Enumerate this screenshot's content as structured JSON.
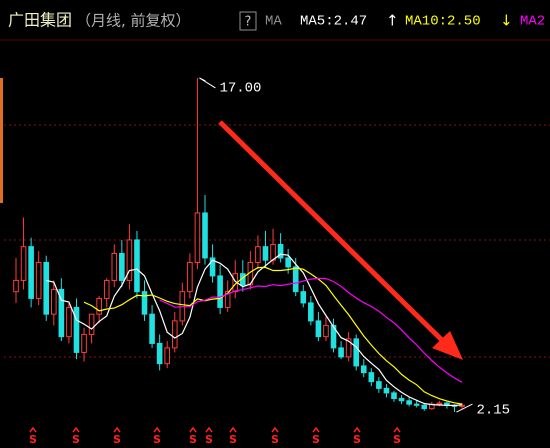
{
  "header": {
    "title": "广田集团",
    "subtitle": "（月线, 前复权）",
    "help": "?",
    "indicator": "MA"
  },
  "chart_data": {
    "type": "candlestick",
    "open": [
      7.5,
      8.0,
      9.5,
      7.2,
      8.8,
      6.5,
      7.6,
      5.5,
      6.8,
      4.8,
      5.6,
      6.5,
      7.2,
      8.0,
      9.2,
      8.0,
      9.8,
      7.5,
      6.5,
      5.2,
      4.3,
      5.0,
      6.2,
      7.5,
      8.8,
      11.0,
      9.0,
      8.2,
      6.8,
      7.5,
      8.3,
      7.8,
      8.8,
      9.5,
      8.9,
      9.6,
      9.0,
      8.6,
      7.5,
      7.0,
      6.2,
      5.5,
      6.0,
      5.0,
      4.6,
      5.4,
      4.2,
      3.9,
      3.5,
      3.2,
      3.0,
      2.75,
      2.65,
      2.5,
      2.45,
      2.3,
      2.5,
      2.55,
      2.45,
      2.4
    ],
    "high": [
      9.0,
      10.8,
      9.9,
      9.3,
      9.1,
      8.0,
      8.1,
      7.0,
      7.2,
      5.9,
      6.4,
      7.3,
      8.1,
      9.6,
      9.8,
      10.5,
      10.2,
      8.0,
      6.9,
      5.6,
      5.3,
      6.6,
      7.9,
      9.2,
      17.0,
      11.8,
      9.6,
      8.7,
      8.0,
      8.9,
      8.9,
      9.3,
      10.0,
      10.2,
      10.3,
      10.1,
      9.4,
      9.0,
      7.8,
      7.3,
      6.6,
      6.4,
      6.3,
      5.3,
      5.7,
      5.6,
      4.5,
      4.1,
      3.7,
      3.4,
      3.1,
      2.9,
      2.8,
      2.65,
      2.55,
      2.6,
      2.65,
      2.6,
      2.5,
      2.55
    ],
    "low": [
      7.0,
      7.6,
      6.8,
      6.9,
      6.2,
      6.0,
      5.3,
      5.2,
      4.5,
      4.4,
      5.2,
      6.1,
      6.8,
      7.7,
      7.7,
      7.6,
      7.2,
      6.2,
      5.0,
      4.0,
      4.1,
      4.8,
      6.0,
      7.2,
      8.5,
      8.7,
      7.9,
      6.5,
      6.6,
      7.2,
      7.5,
      7.6,
      8.5,
      8.6,
      8.7,
      8.8,
      8.3,
      7.3,
      6.8,
      6.0,
      5.3,
      5.3,
      4.8,
      4.5,
      4.4,
      4.0,
      3.7,
      3.3,
      3.0,
      2.8,
      2.6,
      2.5,
      2.4,
      2.35,
      2.2,
      2.25,
      2.4,
      2.3,
      2.15,
      2.3
    ],
    "close": [
      8.0,
      9.5,
      7.2,
      8.8,
      6.5,
      7.6,
      5.5,
      6.8,
      4.8,
      5.6,
      6.5,
      7.2,
      8.0,
      9.2,
      8.0,
      9.8,
      7.5,
      6.5,
      5.2,
      4.3,
      5.0,
      6.2,
      7.5,
      8.8,
      11.0,
      9.0,
      8.2,
      6.8,
      7.5,
      8.3,
      7.8,
      8.8,
      9.5,
      8.9,
      9.6,
      9.0,
      8.6,
      7.5,
      7.0,
      6.2,
      5.5,
      6.0,
      5.0,
      4.6,
      5.4,
      4.2,
      3.9,
      3.5,
      3.2,
      3.0,
      2.75,
      2.65,
      2.5,
      2.45,
      2.3,
      2.5,
      2.55,
      2.45,
      2.4,
      2.45
    ],
    "up_color": "#ff3c3c",
    "down_color": "#20e0e0",
    "series": [
      {
        "name": "MA5:2.47",
        "trend": "↑",
        "color": "#ffffff",
        "values": [
          null,
          null,
          null,
          null,
          8.0,
          7.92,
          7.12,
          7.04,
          6.24,
          6.06,
          5.84,
          6.18,
          6.42,
          7.3,
          7.78,
          8.44,
          8.5,
          8.2,
          7.4,
          6.66,
          5.7,
          5.44,
          5.64,
          6.36,
          7.7,
          8.5,
          8.9,
          8.76,
          8.5,
          7.96,
          7.72,
          7.84,
          8.38,
          8.66,
          8.92,
          9.16,
          9.12,
          8.72,
          8.34,
          7.66,
          6.96,
          6.44,
          5.94,
          5.46,
          5.3,
          5.04,
          4.62,
          4.32,
          4.04,
          3.56,
          3.27,
          3.02,
          2.82,
          2.67,
          2.53,
          2.48,
          2.46,
          2.45,
          2.44,
          2.47
        ]
      },
      {
        "name": "MA10:2.50",
        "trend": "↓",
        "color": "#ffff00",
        "values": [
          null,
          null,
          null,
          null,
          null,
          null,
          null,
          null,
          null,
          7.03,
          6.88,
          6.65,
          6.73,
          6.77,
          6.92,
          7.14,
          7.34,
          7.31,
          7.35,
          7.22,
          7.07,
          6.97,
          6.92,
          6.88,
          7.18,
          7.1,
          7.17,
          7.2,
          7.43,
          7.83,
          8.11,
          8.37,
          8.57,
          8.58,
          8.44,
          8.44,
          8.48,
          8.55,
          8.5,
          8.29,
          8.06,
          7.78,
          7.33,
          6.9,
          6.48,
          6.0,
          5.53,
          5.13,
          4.75,
          4.43,
          4.16,
          3.82,
          3.57,
          3.36,
          3.05,
          2.88,
          2.74,
          2.64,
          2.56,
          2.5
        ]
      },
      {
        "name": "MA2",
        "color": "#ff00ff",
        "values": [
          null,
          null,
          null,
          null,
          null,
          null,
          null,
          null,
          null,
          null,
          null,
          null,
          null,
          null,
          null,
          null,
          null,
          null,
          null,
          7.13,
          6.98,
          6.81,
          6.83,
          6.83,
          7.05,
          7.12,
          7.26,
          7.26,
          7.39,
          7.53,
          7.59,
          7.67,
          7.75,
          7.73,
          7.81,
          7.77,
          7.83,
          7.88,
          7.97,
          8.06,
          8.09,
          8.08,
          7.95,
          7.74,
          7.46,
          7.22,
          7.01,
          6.84,
          6.63,
          6.36,
          6.11,
          5.8,
          5.45,
          5.13,
          4.77,
          4.44,
          4.14,
          3.89,
          3.66,
          3.47
        ]
      }
    ],
    "ylim": [
      0.55,
      19.8
    ],
    "high_label": {
      "value": 17.0,
      "label": "17.00"
    },
    "low_label": {
      "value": 2.15,
      "label": "2.15"
    },
    "signals": [
      "S",
      "S",
      "S",
      "S",
      "S",
      "S",
      "S",
      "S",
      "S",
      "S",
      "S"
    ],
    "signal_color": "#ff2020"
  }
}
